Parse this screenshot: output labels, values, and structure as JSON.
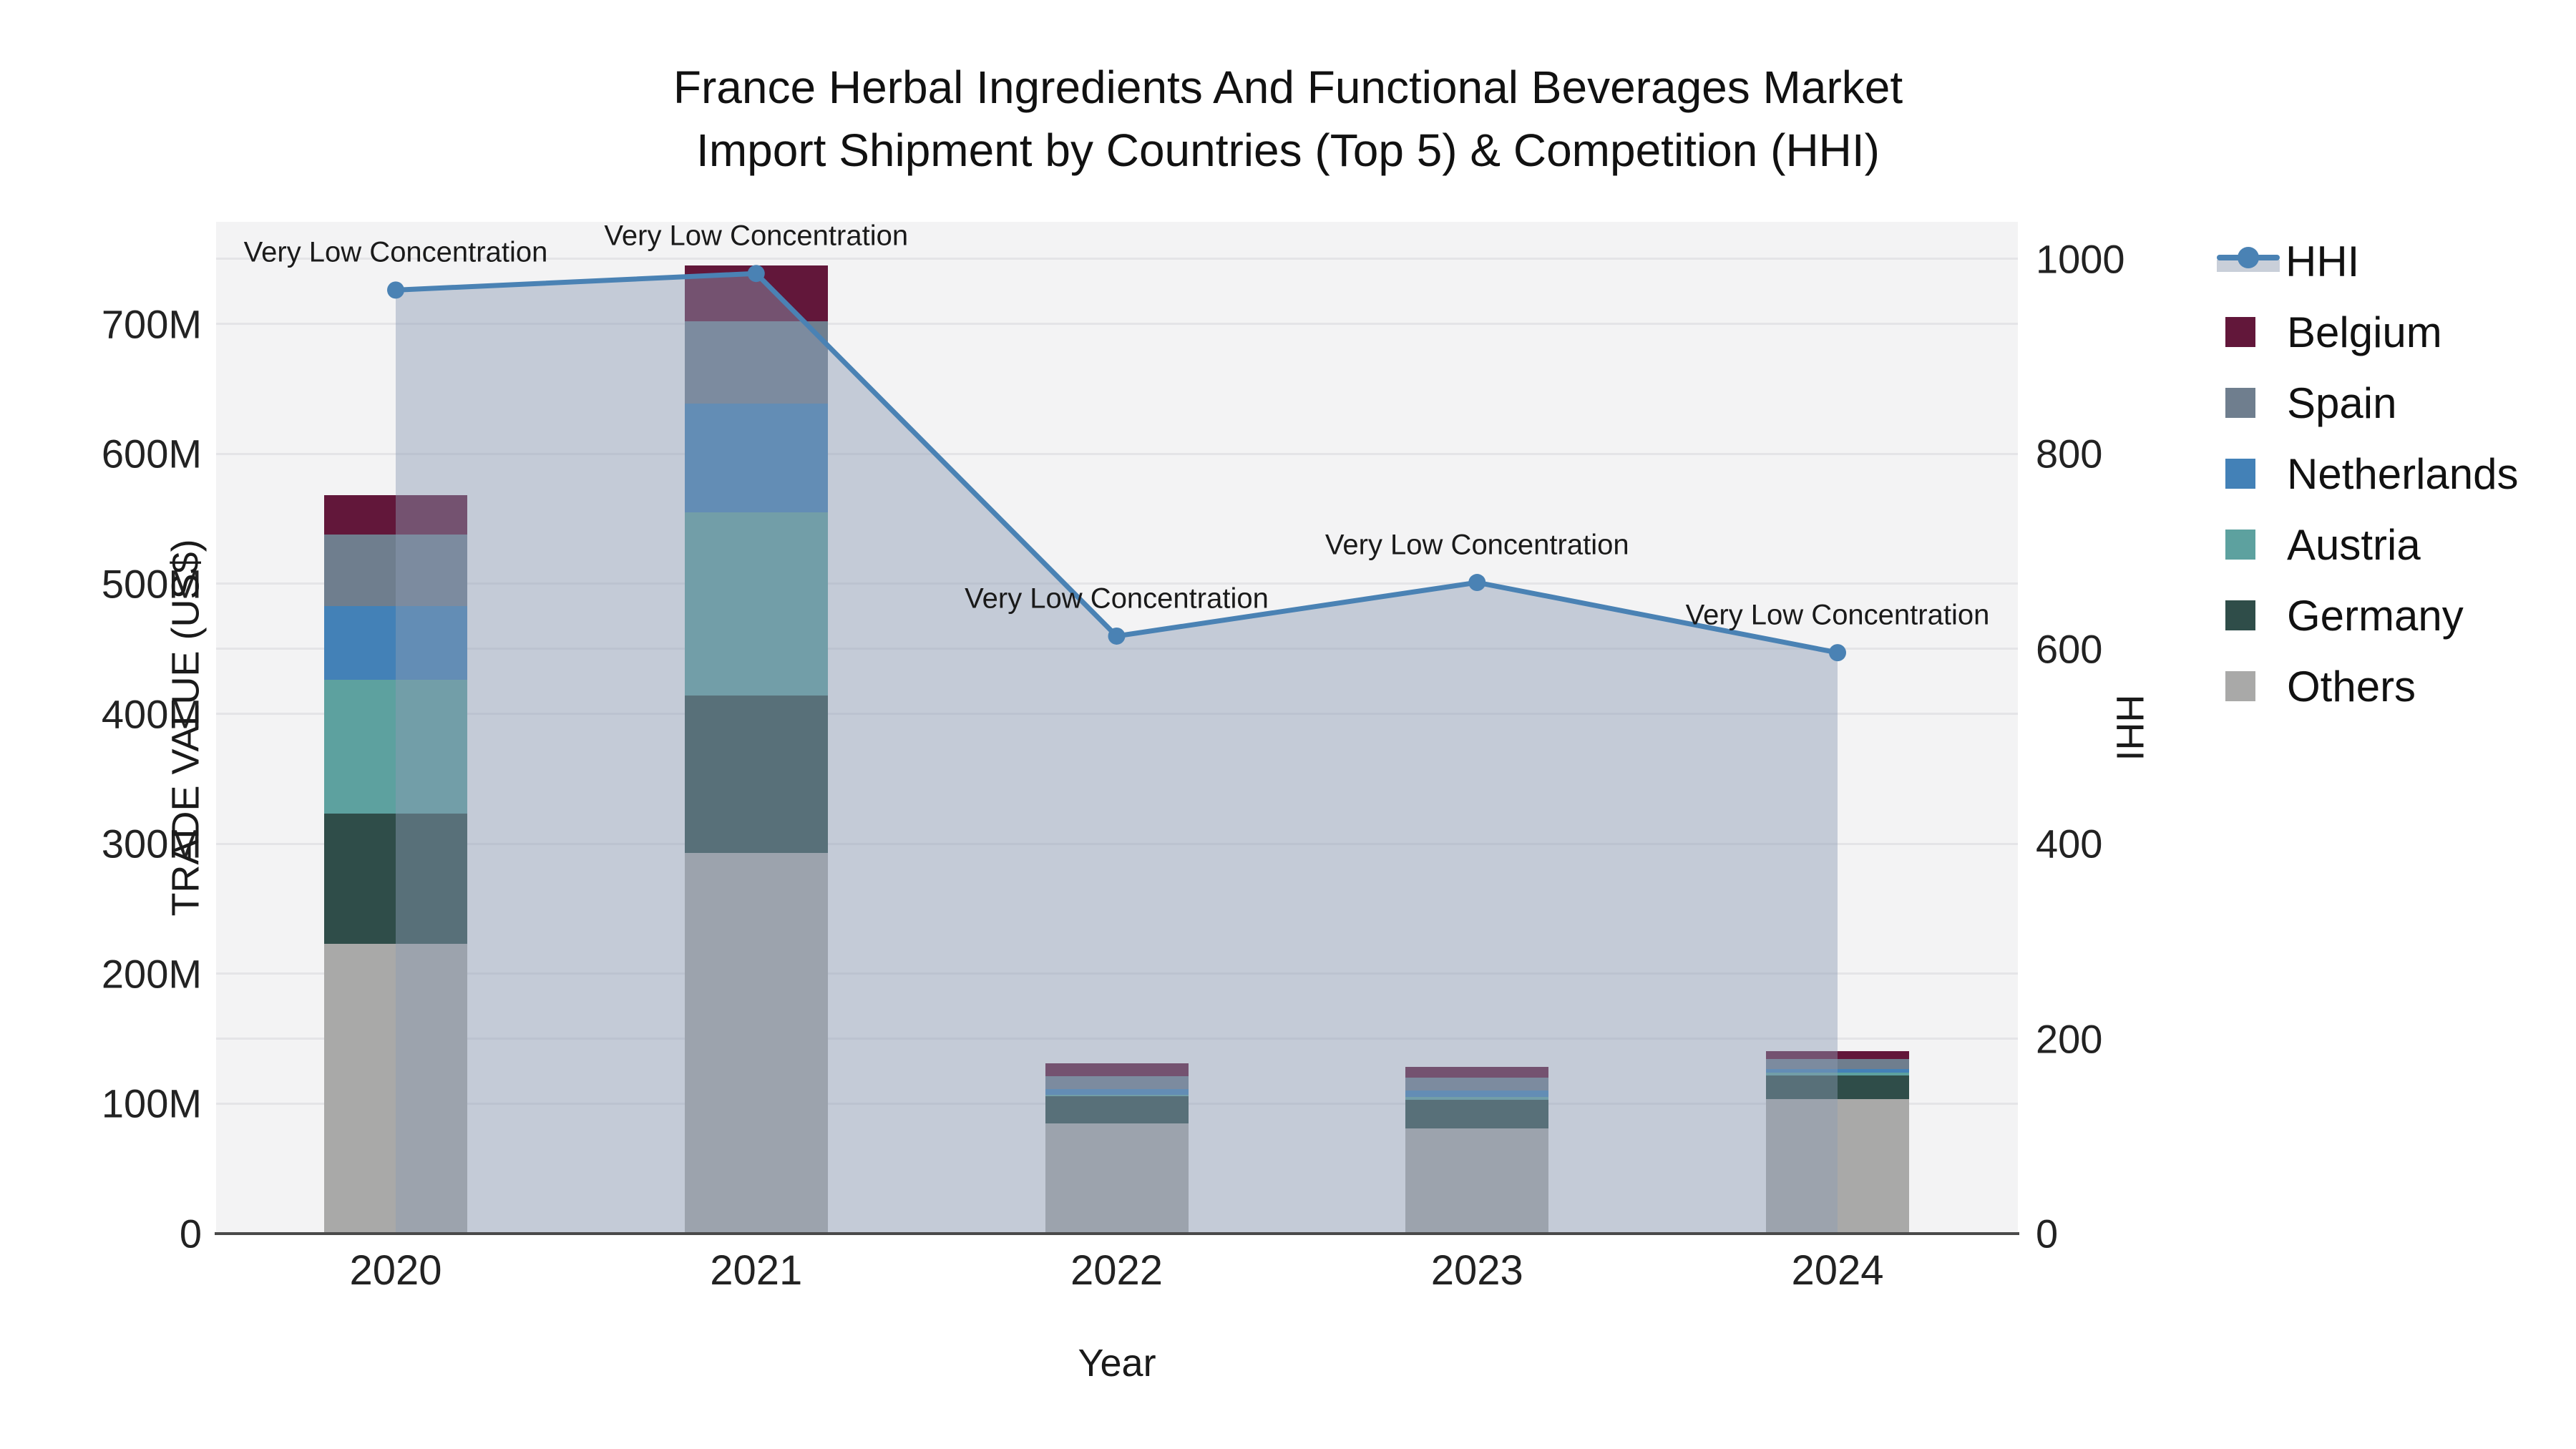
{
  "title": {
    "line1": "France Herbal Ingredients And Functional Beverages Market",
    "line2": "Import Shipment by Countries (Top 5) & Competition (HHI)"
  },
  "axes": {
    "x": {
      "label": "Year",
      "categories": [
        "2020",
        "2021",
        "2022",
        "2023",
        "2024"
      ]
    },
    "y_left": {
      "label": "TRADE VALUE (US$)",
      "ticks": [
        "0",
        "100M",
        "200M",
        "300M",
        "400M",
        "500M",
        "600M",
        "700M"
      ],
      "tick_values": [
        0,
        100,
        200,
        300,
        400,
        500,
        600,
        700
      ],
      "max": 778.6
    },
    "y_right": {
      "label": "HHI",
      "ticks": [
        "0",
        "200",
        "400",
        "600",
        "800",
        "1000"
      ],
      "tick_values": [
        0,
        200,
        400,
        600,
        800,
        1000
      ],
      "max": 1038
    }
  },
  "legend": {
    "order": [
      "HHI",
      "Belgium",
      "Spain",
      "Netherlands",
      "Austria",
      "Germany",
      "Others"
    ]
  },
  "colors": {
    "plot_background": "#f3f3f4",
    "gridline": "#e4e4e7",
    "axis_line": "#4a4a4a",
    "hhi_line": "#4a82b4",
    "hhi_fill": "rgba(140,156,180,0.45)",
    "legend_band": "#c9cfd9",
    "Belgium": "#62173a",
    "Spain": "#6f7e8e",
    "Netherlands": "#4381b7",
    "Austria": "#5da19f",
    "Germany": "#2f4d49",
    "Others": "#a9a9a8"
  },
  "chart_data": {
    "type": "bar",
    "subtype": "stacked-bar-with-line",
    "title": "France Herbal Ingredients And Functional Beverages Market Import Shipment by Countries (Top 5) & Competition (HHI)",
    "xlabel": "Year",
    "ylabel_left": "TRADE VALUE (US$)",
    "ylabel_right": "HHI",
    "categories": [
      "2020",
      "2021",
      "2022",
      "2023",
      "2024"
    ],
    "value_unit": "millions US$",
    "ylim_left": [
      0,
      778.6
    ],
    "ylim_right": [
      0,
      1038
    ],
    "grid": true,
    "legend_position": "right",
    "series": [
      {
        "name": "Others",
        "stack_position": 1,
        "values": [
          223,
          293,
          85,
          81,
          103.5
        ]
      },
      {
        "name": "Germany",
        "stack_position": 2,
        "values": [
          100,
          121,
          20.5,
          22,
          18
        ]
      },
      {
        "name": "Austria",
        "stack_position": 3,
        "values": [
          103,
          141,
          1.5,
          2,
          2.5
        ]
      },
      {
        "name": "Netherlands",
        "stack_position": 4,
        "values": [
          57,
          84,
          4.5,
          5,
          2.5
        ]
      },
      {
        "name": "Spain",
        "stack_position": 5,
        "values": [
          55,
          63,
          9.5,
          10,
          8
        ]
      },
      {
        "name": "Belgium",
        "stack_position": 6,
        "values": [
          30,
          43,
          10,
          8.5,
          6
        ]
      }
    ],
    "bar_totals": [
      568,
      745,
      131,
      128.5,
      140.5
    ],
    "line_series": {
      "name": "HHI",
      "axis": "right",
      "values": [
        968,
        985,
        613,
        668,
        596
      ],
      "area_fill_to_zero": true
    },
    "point_annotations": [
      "Very Low Concentration",
      "Very Low Concentration",
      "Very Low Concentration",
      "Very Low Concentration",
      "Very Low Concentration"
    ]
  }
}
